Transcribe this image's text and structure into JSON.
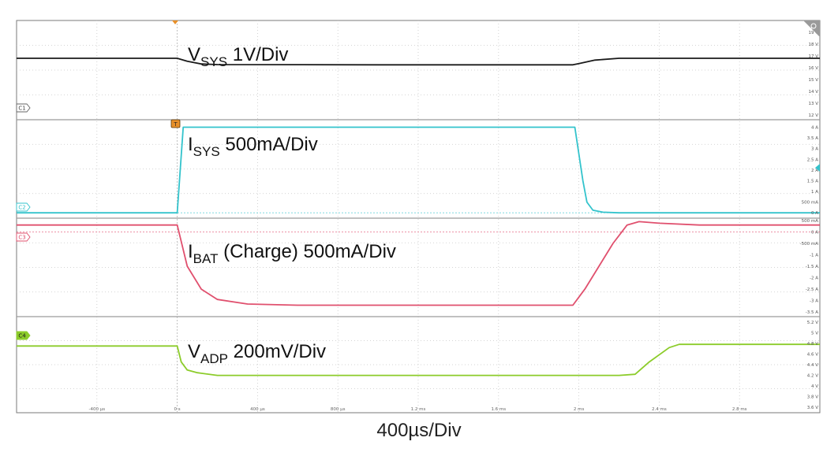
{
  "chart_data": {
    "type": "line",
    "time_scale": "400µs/Div",
    "x_unit": "ms",
    "x_range": [
      -0.8,
      3.2
    ],
    "x_ticks": [
      "-400 µs",
      "0 s",
      "400 µs",
      "800 µs",
      "1.2 ms",
      "1.6 ms",
      "2 ms",
      "2.4 ms",
      "2.8 ms"
    ],
    "trigger_time": 0,
    "grid": true,
    "channels": [
      {
        "id": "C1",
        "color": "#1a1a1a",
        "label_main": "V",
        "label_sub": "SYS",
        "label_rest": " 1V/Div",
        "unit": "V",
        "y_range": [
          11.6,
          20.0
        ],
        "ticks": [
          "19 V",
          "18 V",
          "17 V",
          "16 V",
          "15 V",
          "14 V",
          "13 V",
          "12 V"
        ],
        "tick_values": [
          19,
          18,
          17,
          16,
          15,
          14,
          13,
          12
        ],
        "points": [
          [
            -0.8,
            16.8
          ],
          [
            0.0,
            16.8
          ],
          [
            0.05,
            16.55
          ],
          [
            0.12,
            16.32
          ],
          [
            0.2,
            16.27
          ],
          [
            1.0,
            16.25
          ],
          [
            1.97,
            16.25
          ],
          [
            2.0,
            16.35
          ],
          [
            2.08,
            16.65
          ],
          [
            2.2,
            16.8
          ],
          [
            3.2,
            16.8
          ]
        ]
      },
      {
        "id": "C2",
        "color": "#33c3cc",
        "label_main": "I",
        "label_sub": "SYS",
        "label_rest": " 500mA/Div",
        "unit": "A",
        "y_range": [
          -0.25,
          4.35
        ],
        "ticks": [
          "4 A",
          "3.5 A",
          "3 A",
          "2.5 A",
          "2 A",
          "1.5 A",
          "1 A",
          "500 mA",
          "0 A"
        ],
        "tick_values": [
          4,
          3.5,
          3,
          2.5,
          2,
          1.5,
          1,
          0.5,
          0
        ],
        "points": [
          [
            -0.8,
            0.0
          ],
          [
            0.0,
            0.0
          ],
          [
            0.03,
            4.0
          ],
          [
            1.98,
            4.0
          ],
          [
            2.02,
            1.5
          ],
          [
            2.04,
            0.5
          ],
          [
            2.07,
            0.12
          ],
          [
            2.12,
            0.03
          ],
          [
            2.2,
            0.0
          ],
          [
            3.2,
            0.0
          ]
        ]
      },
      {
        "id": "C3",
        "color": "#e0506e",
        "label_main": "I",
        "label_sub": "BAT",
        "label_rest": " (Charge) 500mA/Div",
        "unit": "A",
        "y_range": [
          -3.7,
          0.6
        ],
        "ticks": [
          "500 mA",
          "0 A",
          "-500 mA",
          "-1 A",
          "-1.5 A",
          "-2 A",
          "-2.5 A",
          "-3 A",
          "-3.5 A"
        ],
        "tick_values": [
          0.5,
          0,
          -0.5,
          -1,
          -1.5,
          -2,
          -2.5,
          -3,
          -3.5
        ],
        "points": [
          [
            -0.8,
            0.3
          ],
          [
            0.0,
            0.3
          ],
          [
            0.05,
            -1.5
          ],
          [
            0.12,
            -2.5
          ],
          [
            0.2,
            -2.95
          ],
          [
            0.35,
            -3.15
          ],
          [
            0.6,
            -3.2
          ],
          [
            1.97,
            -3.2
          ],
          [
            2.03,
            -2.5
          ],
          [
            2.1,
            -1.5
          ],
          [
            2.17,
            -0.5
          ],
          [
            2.24,
            0.3
          ],
          [
            2.3,
            0.45
          ],
          [
            2.4,
            0.38
          ],
          [
            2.6,
            0.3
          ],
          [
            3.2,
            0.3
          ]
        ]
      },
      {
        "id": "C4",
        "color": "#8ccc2a",
        "label_main": "V",
        "label_sub": "ADP",
        "label_rest": " 200mV/Div",
        "unit": "V",
        "y_range": [
          3.5,
          5.3
        ],
        "ticks": [
          "5.2 V",
          "5 V",
          "4.8 V",
          "4.6 V",
          "4.4 V",
          "4.2 V",
          "4 V",
          "3.8 V",
          "3.6 V"
        ],
        "tick_values": [
          5.2,
          5.0,
          4.8,
          4.6,
          4.4,
          4.2,
          4.0,
          3.8,
          3.6
        ],
        "points": [
          [
            -0.8,
            4.75
          ],
          [
            0.0,
            4.75
          ],
          [
            0.02,
            4.45
          ],
          [
            0.05,
            4.3
          ],
          [
            0.1,
            4.25
          ],
          [
            0.2,
            4.2
          ],
          [
            2.2,
            4.2
          ],
          [
            2.28,
            4.22
          ],
          [
            2.35,
            4.45
          ],
          [
            2.45,
            4.72
          ],
          [
            2.5,
            4.78
          ],
          [
            3.2,
            4.78
          ]
        ]
      }
    ]
  },
  "badges": {
    "c1": "C1",
    "c2": "C2",
    "c3": "C3",
    "c4": "C4",
    "trigger": "T"
  },
  "colors": {
    "grid": "#c8c8c8",
    "divider": "#9a9a9a",
    "frame": "#7a7a7a",
    "trigger_marker": "#e8902a"
  }
}
